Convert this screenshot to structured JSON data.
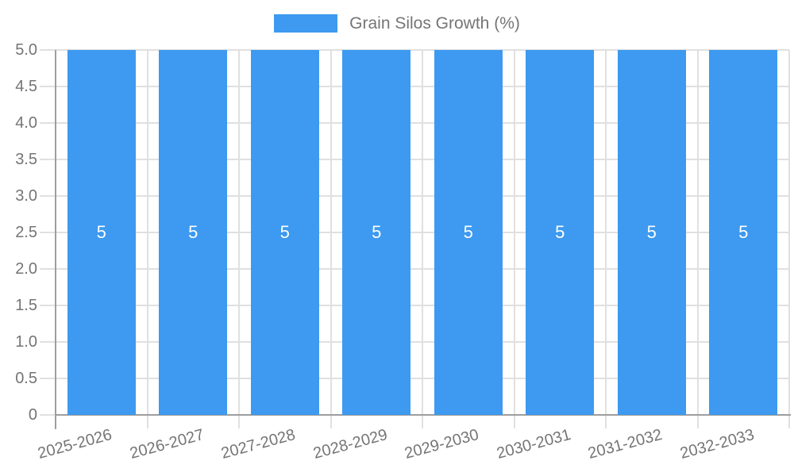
{
  "chart_data": {
    "type": "bar",
    "title": "Grain Silos Growth (%)",
    "xlabel": "",
    "ylabel": "",
    "categories": [
      "2025-2026",
      "2026-2027",
      "2027-2028",
      "2028-2029",
      "2029-2030",
      "2030-2031",
      "2031-2032",
      "2032-2033"
    ],
    "values": [
      5,
      5,
      5,
      5,
      5,
      5,
      5,
      5
    ],
    "value_labels": [
      "5",
      "5",
      "5",
      "5",
      "5",
      "5",
      "5",
      "5"
    ],
    "ylim": [
      0,
      5
    ],
    "y_ticks": [
      {
        "value": 5.0,
        "label": "5.0"
      },
      {
        "value": 4.5,
        "label": "4.5"
      },
      {
        "value": 4.0,
        "label": "4.0"
      },
      {
        "value": 3.5,
        "label": "3.5"
      },
      {
        "value": 3.0,
        "label": "3.0"
      },
      {
        "value": 2.5,
        "label": "2.5"
      },
      {
        "value": 2.0,
        "label": "2.0"
      },
      {
        "value": 1.5,
        "label": "1.5"
      },
      {
        "value": 1.0,
        "label": "1.0"
      },
      {
        "value": 0.5,
        "label": "0.5"
      },
      {
        "value": 0.0,
        "label": "0"
      }
    ],
    "grid": true,
    "legend_position": "top",
    "colors": {
      "bar": "#3d9af0",
      "grid": "#e0e0e0",
      "axis": "#9e9e9e",
      "tick_text": "#757575",
      "legend_text": "#757575",
      "value_text": "#ffffff"
    }
  }
}
